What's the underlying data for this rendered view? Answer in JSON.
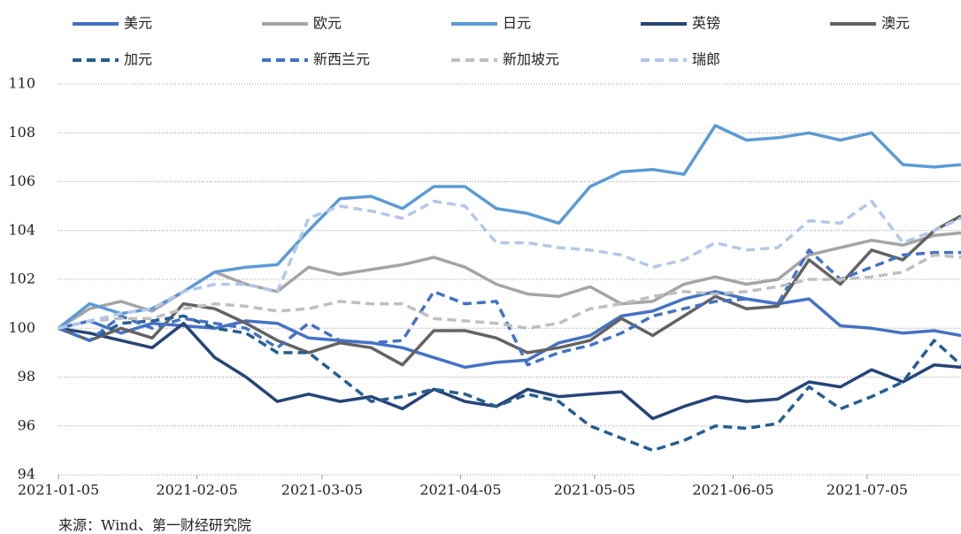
{
  "chart_data": {
    "type": "line",
    "x": [
      "2021-01-05",
      "2021-01-12",
      "2021-01-19",
      "2021-01-26",
      "2021-02-02",
      "2021-02-09",
      "2021-02-16",
      "2021-02-23",
      "2021-03-02",
      "2021-03-09",
      "2021-03-16",
      "2021-03-23",
      "2021-03-30",
      "2021-04-06",
      "2021-04-13",
      "2021-04-20",
      "2021-04-27",
      "2021-05-04",
      "2021-05-11",
      "2021-05-18",
      "2021-05-25",
      "2021-06-01",
      "2021-06-08",
      "2021-06-15",
      "2021-06-22",
      "2021-06-29",
      "2021-07-06",
      "2021-07-13",
      "2021-07-20",
      "2021-07-26"
    ],
    "xlim": [
      "2021-01-05",
      "2021-07-26"
    ],
    "xticks": [
      "2021-01-05",
      "2021-02-05",
      "2021-03-05",
      "2021-04-05",
      "2021-05-05",
      "2021-06-05",
      "2021-07-05"
    ],
    "ylim": [
      94,
      110
    ],
    "yticks": [
      94,
      96,
      98,
      100,
      102,
      104,
      106,
      108,
      110
    ],
    "grid": true,
    "series": [
      {
        "name": "美元",
        "color": "#4472c4",
        "dashed": false,
        "values": [
          100,
          100.3,
          99.8,
          100.2,
          100.1,
          100.0,
          100.3,
          100.2,
          99.6,
          99.5,
          99.4,
          99.2,
          98.8,
          98.4,
          98.6,
          98.7,
          99.4,
          99.7,
          100.5,
          100.7,
          101.2,
          101.5,
          101.2,
          101.0,
          101.2,
          100.1,
          100.0,
          99.8,
          99.9,
          99.7
        ]
      },
      {
        "name": "欧元",
        "color": "#a5a5a5",
        "dashed": false,
        "values": [
          100,
          100.8,
          101.1,
          100.7,
          101.5,
          102.3,
          101.8,
          101.5,
          102.5,
          102.2,
          102.4,
          102.6,
          102.9,
          102.5,
          101.8,
          101.4,
          101.3,
          101.7,
          101.0,
          101.1,
          101.8,
          102.1,
          101.8,
          102.0,
          103.0,
          103.3,
          103.6,
          103.4,
          103.8,
          103.9
        ]
      },
      {
        "name": "日元",
        "color": "#5b9bd5",
        "dashed": false,
        "values": [
          100,
          101.0,
          100.6,
          100.8,
          101.5,
          102.3,
          102.5,
          102.6,
          104.0,
          105.3,
          105.4,
          104.9,
          105.8,
          105.8,
          104.9,
          104.7,
          104.3,
          105.8,
          106.4,
          106.5,
          106.3,
          108.3,
          107.7,
          107.8,
          108.0,
          107.7,
          108.0,
          106.7,
          106.6,
          106.7
        ]
      },
      {
        "name": "英镑",
        "color": "#264478",
        "dashed": false,
        "values": [
          100,
          99.8,
          99.5,
          99.2,
          100.2,
          98.8,
          98.0,
          97.0,
          97.3,
          97.0,
          97.2,
          96.7,
          97.5,
          97.0,
          96.8,
          97.5,
          97.2,
          97.3,
          97.4,
          96.3,
          96.8,
          97.2,
          97.0,
          97.1,
          97.8,
          97.6,
          98.3,
          97.8,
          98.5,
          98.4
        ]
      },
      {
        "name": "澳元",
        "color": "#636363",
        "dashed": false,
        "values": [
          100,
          99.5,
          100.0,
          99.6,
          101.0,
          100.8,
          100.2,
          99.5,
          99.0,
          99.4,
          99.2,
          98.5,
          99.9,
          99.9,
          99.6,
          99.0,
          99.2,
          99.5,
          100.4,
          99.7,
          100.5,
          101.3,
          100.8,
          100.9,
          102.8,
          101.8,
          103.2,
          102.8,
          104.0,
          104.6
        ]
      },
      {
        "name": "加元",
        "color": "#255e91",
        "dashed": true,
        "values": [
          100,
          99.5,
          100.2,
          100.3,
          100.5,
          100.0,
          99.8,
          99.0,
          99.0,
          98.0,
          97.0,
          97.2,
          97.5,
          97.3,
          96.8,
          97.3,
          97.0,
          96.0,
          95.5,
          95.0,
          95.4,
          96.0,
          95.9,
          96.1,
          97.6,
          96.7,
          97.2,
          97.8,
          99.5,
          98.5
        ]
      },
      {
        "name": "新西兰元",
        "color": "#4472c4",
        "dashed": true,
        "values": [
          100,
          99.5,
          100.5,
          100.0,
          100.4,
          100.2,
          100.0,
          99.2,
          100.2,
          99.5,
          99.4,
          99.5,
          101.5,
          101.0,
          101.1,
          98.5,
          99.0,
          99.3,
          99.8,
          100.5,
          100.8,
          101.1,
          101.2,
          101.0,
          103.2,
          102.0,
          102.5,
          103.0,
          103.1,
          103.1
        ]
      },
      {
        "name": "新加坡元",
        "color": "#bfbfbf",
        "dashed": true,
        "values": [
          100,
          100.3,
          100.4,
          100.4,
          100.8,
          101.0,
          100.9,
          100.7,
          100.8,
          101.1,
          101.0,
          101.0,
          100.4,
          100.3,
          100.2,
          100.0,
          100.2,
          100.8,
          101.0,
          101.3,
          101.5,
          101.4,
          101.5,
          101.7,
          102.0,
          102.0,
          102.1,
          102.3,
          103.0,
          102.9
        ]
      },
      {
        "name": "瑞郎",
        "color": "#b4c7e7",
        "dashed": true,
        "values": [
          100,
          100.3,
          100.6,
          100.8,
          101.5,
          101.8,
          101.8,
          101.5,
          104.5,
          105.0,
          104.8,
          104.5,
          105.2,
          105.0,
          103.5,
          103.5,
          103.3,
          103.2,
          103.0,
          102.5,
          102.8,
          103.5,
          103.2,
          103.3,
          104.4,
          104.3,
          105.2,
          103.5,
          104.0,
          104.5
        ]
      }
    ],
    "source": "来源：Wind、第一财经研究院"
  }
}
